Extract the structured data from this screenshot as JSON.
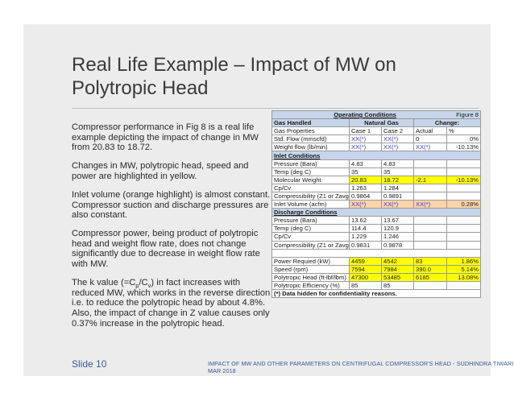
{
  "title": {
    "line1": "Real Life Example – Impact of MW on",
    "line2": "Polytropic Head"
  },
  "paragraphs": {
    "p1": "Compressor performance in Fig 8 is a real life example depicting the impact of change in MW from 20.83 to 18.72.",
    "p2": "Changes in MW, polytropic head, speed and power are highlighted in yellow.",
    "p3": "Inlet volume (orange highlight) is almost constant. Compressor suction and discharge pressures are also constant.",
    "p4": "Compressor power, being product of polytropic head and weight flow rate, does not change significantly due to decrease in weight flow rate with MW.",
    "p5_a": "The k value (=C",
    "p5_sub1": "p",
    "p5_b": "/C",
    "p5_sub2": "v",
    "p5_c": ") in fact increases with reduced MW, which works in the reverse direction i.e. to reduce the polytropic head by about 4.8%. Also, the impact of change in Z value causes only 0.37% increase in the polytropic head."
  },
  "table": {
    "title": "Operating Conditions",
    "figure": "Figure 8",
    "gas_handled": "Gas Handled",
    "natural_gas": "Natural Gas",
    "change": "Change:",
    "gas_properties": "Gas Properties",
    "case1": "Case 1",
    "case2": "Case 2",
    "actual": "Actual",
    "pct": "%",
    "rows_top": [
      {
        "label": "Std. Flow (mmscfd)",
        "c1": "XX(*)",
        "c2": "XX(*)",
        "act": "0",
        "pct": "0%"
      },
      {
        "label": "Weight flow (lb/min)",
        "c1": "XX(*)",
        "c2": "XX(*)",
        "act": "XX(*)",
        "pct": "-10.13%"
      }
    ],
    "inlet_label": "Inlet Conditions",
    "rows_inlet": [
      {
        "label": "Pressure (Bara)",
        "c1": "4.83",
        "c2": "4.83",
        "act": "",
        "pct": ""
      },
      {
        "label": "Temp (deg C)",
        "c1": "35",
        "c2": "35",
        "act": "",
        "pct": ""
      },
      {
        "label": "Molecular Weight",
        "c1": "20.83",
        "c2": "18.72",
        "act": "-2.1",
        "pct": "-10.13%"
      },
      {
        "label": "Cp/Cv",
        "c1": "1.263",
        "c2": "1.284",
        "act": "",
        "pct": ""
      },
      {
        "label": "Compressibility (Z1 or Zavg)",
        "c1": "0.9864",
        "c2": "0.9891",
        "act": "",
        "pct": ""
      },
      {
        "label": "Inlet Volume (acfm)",
        "c1": "XX(*)",
        "c2": "XX(*)",
        "act": "XX(*)",
        "pct": "0.28%"
      }
    ],
    "discharge_label": "Discharge Conditions",
    "rows_discharge": [
      {
        "label": "Pressure (Bara)",
        "c1": "13.62",
        "c2": "13.67",
        "act": "",
        "pct": ""
      },
      {
        "label": "Temp (deg C)",
        "c1": "114.4",
        "c2": "120.9",
        "act": "",
        "pct": ""
      },
      {
        "label": "Cp/Cv",
        "c1": "1.229",
        "c2": "1.246",
        "act": "",
        "pct": ""
      },
      {
        "label": "Compressibility (Z1 or Zavg)",
        "c1": "0.9831",
        "c2": "0.9878",
        "act": "",
        "pct": ""
      }
    ],
    "rows_bottom": [
      {
        "label": "Power Requied (kW)",
        "c1": "4459",
        "c2": "4542",
        "act": "83",
        "pct": "1.86%"
      },
      {
        "label": "Speed (rpm)",
        "c1": "7594",
        "c2": "7984",
        "act": "390.0",
        "pct": "5.14%"
      },
      {
        "label": "Polytropic Head (ft-lbf/lbm)",
        "c1": "47300",
        "c2": "53485",
        "act": "6185",
        "pct": "13.08%"
      },
      {
        "label": "Polytropic Efficiency (%)",
        "c1": "85",
        "c2": "85",
        "act": "",
        "pct": ""
      }
    ],
    "note": "(*) Data hidden for confidentiality reasons."
  },
  "footer": {
    "slide": "Slide 10",
    "text": "IMPACT OF MW AND OTHER PARAMETERS ON CENTRIFUGAL COMPRESSOR'S HEAD - SUDHINDRA TIWARI MAR 2018"
  },
  "colors": {
    "highlight_yellow": "#ffff00",
    "highlight_orange": "#fbd3a8",
    "header_blue": "#c6d5ea",
    "hidden_text": "#3a3ad0"
  }
}
